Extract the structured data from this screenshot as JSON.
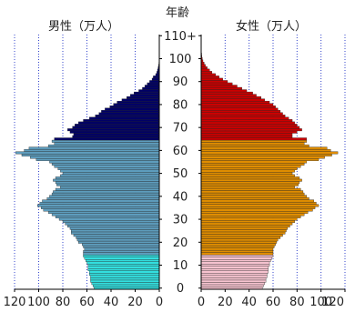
{
  "chart_data": {
    "type": "bar",
    "orientation": "horizontal-pyramid",
    "title": "年齢",
    "left_title": "男性（万人）",
    "right_title": "女性（万人）",
    "age_ticks": [
      "0",
      "10",
      "20",
      "30",
      "40",
      "50",
      "60",
      "70",
      "80",
      "90",
      "100",
      "110+"
    ],
    "x_ticks_left": [
      "120",
      "100",
      "80",
      "60",
      "40",
      "20",
      "0"
    ],
    "x_ticks_right": [
      "0",
      "20",
      "40",
      "60",
      "80",
      "100",
      "120"
    ],
    "xlim": [
      0,
      120
    ],
    "grid": "vertical dotted blue lines every 20",
    "age_groups_colors": {
      "male": [
        {
          "from": 0,
          "to": 14,
          "color": "#33dfdf"
        },
        {
          "from": 15,
          "to": 64,
          "color": "#5e9dbd"
        },
        {
          "from": 65,
          "to": 110,
          "color": "#000066"
        }
      ],
      "female": [
        {
          "from": 0,
          "to": 14,
          "color": "#f6c3cf"
        },
        {
          "from": 15,
          "to": 64,
          "color": "#e08d00"
        },
        {
          "from": 65,
          "to": 110,
          "color": "#cc0000"
        }
      ]
    },
    "series": [
      {
        "name": "男性",
        "ages": [
          0,
          1,
          2,
          3,
          4,
          5,
          6,
          7,
          8,
          9,
          10,
          11,
          12,
          13,
          14,
          15,
          16,
          17,
          18,
          19,
          20,
          21,
          22,
          23,
          24,
          25,
          26,
          27,
          28,
          29,
          30,
          31,
          32,
          33,
          34,
          35,
          36,
          37,
          38,
          39,
          40,
          41,
          42,
          43,
          44,
          45,
          46,
          47,
          48,
          49,
          50,
          51,
          52,
          53,
          54,
          55,
          56,
          57,
          58,
          59,
          60,
          61,
          62,
          63,
          64,
          65,
          66,
          67,
          68,
          69,
          70,
          71,
          72,
          73,
          74,
          75,
          76,
          77,
          78,
          79,
          80,
          81,
          82,
          83,
          84,
          85,
          86,
          87,
          88,
          89,
          90,
          91,
          92,
          93,
          94,
          95,
          96,
          97,
          98,
          99,
          100,
          101,
          102,
          103,
          104,
          105,
          106,
          107,
          108,
          109,
          110
        ],
        "values": [
          54,
          55,
          56,
          57,
          57,
          57,
          58,
          58,
          59,
          59,
          59,
          60,
          61,
          62,
          63,
          63,
          63,
          62,
          63,
          64,
          67,
          68,
          69,
          71,
          73,
          73,
          74,
          76,
          78,
          80,
          83,
          86,
          89,
          92,
          96,
          98,
          101,
          99,
          97,
          93,
          91,
          89,
          88,
          86,
          82,
          85,
          86,
          88,
          86,
          82,
          80,
          82,
          84,
          87,
          89,
          91,
          102,
          107,
          114,
          119,
          112,
          108,
          92,
          87,
          89,
          87,
          72,
          71,
          74,
          76,
          72,
          70,
          67,
          63,
          58,
          53,
          50,
          48,
          45,
          41,
          38,
          35,
          31,
          27,
          24,
          21,
          17,
          14,
          12,
          10,
          8,
          6,
          5,
          3,
          2,
          1.5,
          1,
          0.6,
          0.3,
          0.2,
          0.1,
          0.05,
          0.03,
          0.02,
          0.01,
          0,
          0,
          0,
          0,
          0,
          0
        ]
      },
      {
        "name": "女性",
        "ages": [
          0,
          1,
          2,
          3,
          4,
          5,
          6,
          7,
          8,
          9,
          10,
          11,
          12,
          13,
          14,
          15,
          16,
          17,
          18,
          19,
          20,
          21,
          22,
          23,
          24,
          25,
          26,
          27,
          28,
          29,
          30,
          31,
          32,
          33,
          34,
          35,
          36,
          37,
          38,
          39,
          40,
          41,
          42,
          43,
          44,
          45,
          46,
          47,
          48,
          49,
          50,
          51,
          52,
          53,
          54,
          55,
          56,
          57,
          58,
          59,
          60,
          61,
          62,
          63,
          64,
          65,
          66,
          67,
          68,
          69,
          70,
          71,
          72,
          73,
          74,
          75,
          76,
          77,
          78,
          79,
          80,
          81,
          82,
          83,
          84,
          85,
          86,
          87,
          88,
          89,
          90,
          91,
          92,
          93,
          94,
          95,
          96,
          97,
          98,
          99,
          100,
          101,
          102,
          103,
          104,
          105,
          106,
          107,
          108,
          109,
          110
        ],
        "values": [
          51,
          52,
          53,
          54,
          54,
          55,
          55,
          56,
          56,
          56,
          57,
          57,
          58,
          59,
          60,
          60,
          60,
          60,
          61,
          62,
          63,
          64,
          66,
          68,
          70,
          71,
          72,
          74,
          76,
          78,
          80,
          83,
          86,
          89,
          93,
          95,
          98,
          96,
          94,
          90,
          88,
          86,
          85,
          83,
          78,
          81,
          82,
          84,
          82,
          78,
          76,
          78,
          80,
          83,
          86,
          88,
          98,
          103,
          109,
          114,
          108,
          105,
          90,
          86,
          88,
          88,
          76,
          76,
          80,
          84,
          82,
          80,
          78,
          76,
          73,
          70,
          68,
          66,
          64,
          62,
          60,
          57,
          53,
          50,
          46,
          43,
          38,
          34,
          30,
          26,
          22,
          18,
          15,
          12,
          9,
          7,
          5,
          3.5,
          2.5,
          1.5,
          1,
          0.6,
          0.4,
          0.2,
          0.1,
          0.05,
          0.03,
          0.02,
          0.01,
          0,
          0
        ]
      }
    ]
  }
}
